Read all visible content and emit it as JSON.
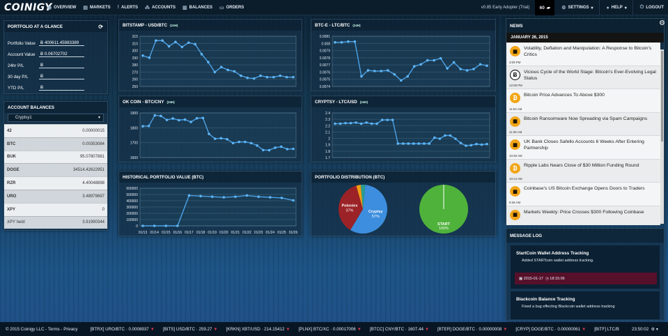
{
  "app": {
    "logo": "COINIGY"
  },
  "nav": {
    "items": [
      {
        "label": "OVERVIEW",
        "icon": "globe-icon"
      },
      {
        "label": "MARKETS",
        "icon": "chart-icon"
      },
      {
        "label": "ALERTS",
        "icon": "exclamation-icon"
      },
      {
        "label": "ACCOUNTS",
        "icon": "sitemap-icon"
      },
      {
        "label": "BALANCES",
        "icon": "book-icon"
      },
      {
        "label": "ORDERS",
        "icon": "folder-icon"
      }
    ],
    "version": "v0.85 Early Adopter (Trial)",
    "count": "60",
    "settings": "SETTINGS",
    "help": "HELP",
    "logout": "LOGOUT"
  },
  "portfolio": {
    "title": "PORTFOLIO AT A GLANCE",
    "rows": [
      {
        "label": "Portfolio Value",
        "value": "400611.45983389"
      },
      {
        "label": "Account Value",
        "value": "0.06702702"
      },
      {
        "label": "24hr P/L",
        "value": ""
      },
      {
        "label": "30 day P/L",
        "value": ""
      },
      {
        "label": "YTD P/L",
        "value": ""
      }
    ]
  },
  "balances": {
    "title": "ACCOUNT BALANCES",
    "selected": "Cryptsy1",
    "rows": [
      {
        "coin": "42",
        "value": "0.00000015"
      },
      {
        "coin": "BTC",
        "value": "0.00353084"
      },
      {
        "coin": "BUK",
        "value": "95.07807881"
      },
      {
        "coin": "DOGE",
        "value": "34514.42622951"
      },
      {
        "coin": "RZR",
        "value": "4.40048898"
      },
      {
        "coin": "URO",
        "value": "3.48979697"
      },
      {
        "coin": "XPY",
        "value": "0"
      },
      {
        "coin": "XPY held:",
        "value": "3.91990344"
      }
    ]
  },
  "charts": {
    "bitstamp": {
      "title": "BITSTAMP - USD/BTC",
      "tag": "(24H)"
    },
    "btce": {
      "title": "BTC-E - LTC/BTC",
      "tag": "(24H)"
    },
    "okcoin": {
      "title": "OK COIN - BTC/CNY",
      "tag": "(24H)"
    },
    "cryptsy": {
      "title": "CRYPTSY - LTC/USD",
      "tag": "(24H)"
    },
    "history": {
      "title": "HISTORICAL PORTFOLIO VALUE (BTC)"
    },
    "distribution": {
      "title": "PORTFOLIO DISTRIBUTION (BTC)"
    }
  },
  "chart_data": [
    {
      "id": "bitstamp",
      "type": "line",
      "title": "BITSTAMP - USD/BTC",
      "ylim": [
        245,
        315
      ],
      "yticks": [
        "315",
        "310",
        "300",
        "290",
        "280",
        "270",
        "260",
        "250"
      ],
      "values": [
        288,
        285,
        309,
        309,
        301,
        307,
        300,
        306,
        304,
        290,
        279,
        265,
        272,
        268,
        266,
        260,
        257,
        256,
        260,
        258,
        258,
        260,
        258,
        258
      ]
    },
    {
      "id": "btce",
      "type": "line",
      "title": "BTC-E - LTC/BTC",
      "ylim": [
        0.00735,
        0.0081
      ],
      "yticks": [
        "0.0081",
        "0.008",
        "0.0079",
        "0.0078",
        "0.0077",
        "0.0076",
        "0.0075",
        "0.0074"
      ],
      "values": [
        0.00801,
        0.00801,
        0.00802,
        0.00802,
        0.0075,
        0.00759,
        0.00758,
        0.00758,
        0.00759,
        0.00753,
        0.00744,
        0.0075,
        0.00765,
        0.00768,
        0.00774,
        0.00774,
        0.00777,
        0.00762,
        0.00771,
        0.00761,
        0.00759,
        0.00761,
        0.00768,
        0.00766
      ]
    },
    {
      "id": "okcoin",
      "type": "line",
      "title": "OK COIN - BTC/CNY",
      "ylim": [
        1540,
        1910
      ],
      "yticks": [
        "1900",
        "1800",
        "1700",
        "1600"
      ],
      "values": [
        1800,
        1802,
        1890,
        1885,
        1852,
        1864,
        1850,
        1855,
        1835,
        1866,
        1868,
        1736,
        1696,
        1700,
        1692,
        1660,
        1670,
        1670,
        1660,
        1640,
        1602,
        1601,
        1622,
        1630,
        1610,
        1612
      ]
    },
    {
      "id": "cryptsy",
      "type": "line",
      "title": "CRYPTSY - LTC/USD",
      "ylim": [
        1.65,
        2.48
      ],
      "yticks": [
        "2.4",
        "2.3",
        "2.2",
        "2.1",
        "2",
        "1.9",
        "1.8",
        "1.7"
      ],
      "values": [
        2.28,
        2.28,
        2.29,
        2.29,
        2.3,
        2.28,
        2.3,
        2.28,
        2.28,
        2.35,
        2.35,
        2.35,
        1.91,
        1.91,
        1.91,
        1.91,
        1.91,
        1.91,
        1.91,
        2.02,
        2.0,
        2.06,
        2.06,
        2.0,
        1.92,
        1.87,
        1.88,
        1.9,
        1.89,
        1.9
      ]
    },
    {
      "id": "history",
      "type": "line",
      "title": "HISTORICAL PORTFOLIO VALUE (BTC)",
      "ylim": [
        0,
        620000
      ],
      "yticks": [
        "600000",
        "500000",
        "400000",
        "300000",
        "200000",
        "100000",
        "0"
      ],
      "categories": [
        "01/13",
        "01/14",
        "01/15",
        "01/16",
        "01/17",
        "01/18",
        "01/19",
        "01/20",
        "01/21",
        "01/22",
        "01/23",
        "01/24",
        "01/25",
        "01/26"
      ],
      "values": [
        0,
        0,
        0,
        0,
        500000,
        490000,
        480000,
        470000,
        480000,
        500000,
        480000,
        470000,
        460000,
        420000
      ]
    },
    {
      "id": "distribution-accounts",
      "type": "pie",
      "title": "PORTFOLIO DISTRIBUTION (BTC)",
      "slices": [
        {
          "name": "Cryptsy",
          "value": 57,
          "color": "#3d8ede"
        },
        {
          "name": "Poloniex",
          "value": 37,
          "color": "#9b2226"
        },
        {
          "name": "",
          "value": 3,
          "color": "#f39c12"
        },
        {
          "name": "",
          "value": 3,
          "color": "#2a9d8f"
        }
      ]
    },
    {
      "id": "distribution-coins",
      "type": "pie",
      "slices": [
        {
          "name": "START",
          "value": 100,
          "color": "#4fb23b"
        }
      ]
    }
  ],
  "news": {
    "title": "NEWS",
    "date": "JANUARY 26, 2015",
    "items": [
      {
        "icon": "coindesk-icon",
        "text": "Volatility, Deflation and Manipulation: A Response to Bitcoin's Critics",
        "time": "3:09 PM"
      },
      {
        "icon": "bitcoin-news-icon",
        "text": "Vicious Cycle of the World Stage: Bitcoin's Ever-Evolving Legal Status",
        "time": "12:08 PM"
      },
      {
        "icon": "bitcoin-icon",
        "text": "Bitcoin Price Advances To Above $300",
        "time": "11:54 AM"
      },
      {
        "icon": "coindesk-icon",
        "text": "Bitcoin Ransomware Now Spreading via Spam Campaigns",
        "time": "11:36 AM"
      },
      {
        "icon": "coindesk-icon",
        "text": "UK Bank Closes Safello Accounts 6 Weeks After Entering Partnership",
        "time": "10:48 AM"
      },
      {
        "icon": "bitcoin-icon",
        "text": "Ripple Labs Nears Close of $30 Million Funding Round",
        "time": "10:14 AM"
      },
      {
        "icon": "coindesk-icon",
        "text": "Coinbase's US Bitcoin Exchange Opens Doors to Traders",
        "time": "9:36 AM"
      },
      {
        "icon": "coindesk-icon",
        "text": "Markets Weekly: Price Crosses $300 Following Coinbase",
        "time": ""
      }
    ]
  },
  "messagelog": {
    "title": "MESSAGE LOG",
    "items": [
      {
        "title": "StartCoin Wallet Address Tracking",
        "desc": "Added STARTcoin wallet address tracking.",
        "date": "2015-01-17",
        "time": "18:15:06"
      },
      {
        "title": "Blackcoin Balance Tracking",
        "desc": "Fixed a bug effecting Blackcoin wallet address tracking",
        "date": "",
        "time": ""
      }
    ]
  },
  "ticker": {
    "copyright": "© 2015 Coinigy LLC - Terms - Privacy",
    "items": [
      "[BTRX] URO/BTC · 0.0008937",
      "[BITS] USD/BTC · 259.27",
      "[KRKN] XBT/USD · 214.15412",
      "[PLNX] BTC/XC · 0.00017006",
      "[BTCC] CNY/BTC · 1607.44",
      "[BTER] DOGE/BTC · 0.00000008",
      "[CRYP] DOGE/BTC · 0.00000061",
      "[BITF] LTC/B"
    ],
    "clock": "23:50:02"
  }
}
